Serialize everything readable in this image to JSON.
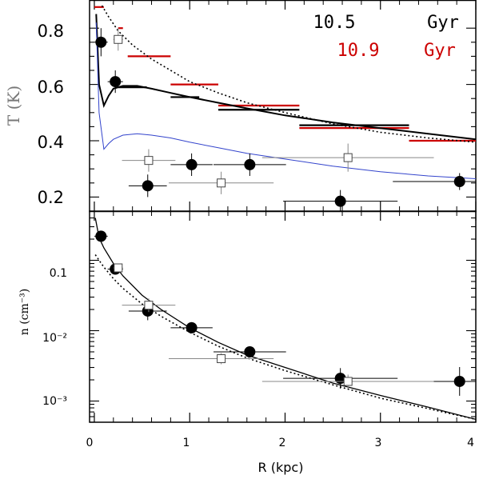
{
  "chart_data": [
    {
      "type": "scatter",
      "panel": "top",
      "title": "",
      "xlabel": "",
      "ylabel": "T (K)",
      "xlim": [
        -0.05,
        4.0
      ],
      "ylim": [
        0.15,
        0.9
      ],
      "yticks": [
        "0.2",
        "0.4",
        "0.6",
        "0.8"
      ],
      "legend": {
        "placement": "top-right",
        "entries": [
          {
            "label": "10.5",
            "unit": "Gyr",
            "color": "#000000"
          },
          {
            "label": "10.9",
            "unit": "Gyr",
            "color": "#cc0000"
          }
        ]
      },
      "series": [
        {
          "name": "10.5 Gyr",
          "kind": "steps",
          "color": "#000000",
          "points": [
            {
              "x0": 0.25,
              "x1": 0.55,
              "y": 0.59
            },
            {
              "x0": 0.8,
              "x1": 1.1,
              "y": 0.555
            },
            {
              "x0": 1.3,
              "x1": 2.15,
              "y": 0.51
            },
            {
              "x0": 2.15,
              "x1": 3.3,
              "y": 0.455
            }
          ]
        },
        {
          "name": "10.9 Gyr",
          "kind": "steps",
          "color": "#cc0000",
          "points": [
            {
              "x0": 0.0,
              "x1": 0.1,
              "y": 0.875
            },
            {
              "x0": 0.25,
              "x1": 0.3,
              "y": 0.8
            },
            {
              "x0": 0.35,
              "x1": 0.8,
              "y": 0.7
            },
            {
              "x0": 0.8,
              "x1": 1.3,
              "y": 0.6
            },
            {
              "x0": 1.3,
              "x1": 2.15,
              "y": 0.525
            },
            {
              "x0": 2.15,
              "x1": 3.3,
              "y": 0.445
            },
            {
              "x0": 3.3,
              "x1": 4.0,
              "y": 0.4
            }
          ]
        },
        {
          "kind": "points-filled",
          "color": "#000000",
          "points": [
            {
              "x": 0.07,
              "y": 0.75,
              "xerr": 0.07,
              "yerr": 0.05
            },
            {
              "x": 0.22,
              "y": 0.61,
              "xerr": 0.08,
              "yerr": 0.04
            },
            {
              "x": 0.56,
              "y": 0.24,
              "xerr": 0.2,
              "yerr": 0.04
            },
            {
              "x": 1.02,
              "y": 0.315,
              "xerr": 0.22,
              "yerr": 0.04
            },
            {
              "x": 1.63,
              "y": 0.315,
              "xerr": 0.38,
              "yerr": 0.04
            },
            {
              "x": 2.58,
              "y": 0.185,
              "xerr": 0.6,
              "yerr": 0.04
            },
            {
              "x": 3.83,
              "y": 0.255,
              "xerr": 0.7,
              "yerr": 0.03
            }
          ]
        },
        {
          "kind": "points-open",
          "color": "#000000",
          "points": [
            {
              "x": 0.25,
              "y": 0.76,
              "xerr": 0.05,
              "yerr": 0.04
            },
            {
              "x": 0.57,
              "y": 0.33,
              "xerr": 0.28,
              "yerr": 0.04
            },
            {
              "x": 1.33,
              "y": 0.25,
              "xerr": 0.55,
              "yerr": 0.04
            },
            {
              "x": 2.66,
              "y": 0.34,
              "xerr": 0.9,
              "yerr": 0.05
            }
          ]
        },
        {
          "kind": "curve-solid",
          "color": "#000000",
          "x": [
            0.02,
            0.05,
            0.1,
            0.15,
            0.2,
            0.3,
            0.45,
            0.6,
            0.8,
            1.0,
            1.3,
            1.6,
            2.0,
            2.5,
            3.0,
            3.5,
            4.0
          ],
          "y": [
            0.85,
            0.6,
            0.525,
            0.56,
            0.585,
            0.595,
            0.595,
            0.585,
            0.57,
            0.555,
            0.535,
            0.515,
            0.49,
            0.465,
            0.445,
            0.425,
            0.405
          ]
        },
        {
          "kind": "curve-dotted",
          "color": "#000000",
          "x": [
            0.08,
            0.15,
            0.25,
            0.4,
            0.6,
            0.8,
            1.0,
            1.3,
            1.6,
            2.0,
            2.5,
            3.0,
            3.5,
            4.0
          ],
          "y": [
            0.88,
            0.84,
            0.79,
            0.74,
            0.69,
            0.65,
            0.61,
            0.57,
            0.535,
            0.5,
            0.46,
            0.43,
            0.41,
            0.395
          ]
        },
        {
          "kind": "curve-blue",
          "color": "#3344cc",
          "x": [
            0.02,
            0.05,
            0.1,
            0.15,
            0.2,
            0.3,
            0.45,
            0.6,
            0.8,
            1.0,
            1.3,
            1.6,
            2.0,
            2.5,
            3.0,
            3.5,
            4.0
          ],
          "y": [
            0.82,
            0.5,
            0.37,
            0.39,
            0.405,
            0.42,
            0.425,
            0.42,
            0.41,
            0.395,
            0.375,
            0.355,
            0.335,
            0.31,
            0.29,
            0.275,
            0.265
          ]
        }
      ]
    },
    {
      "type": "scatter",
      "panel": "bottom",
      "title": "",
      "xlabel": "R (kpc)",
      "ylabel": "n (cm⁻³)",
      "xlim": [
        -0.05,
        4.0
      ],
      "ylim": [
        0.0005,
        0.5
      ],
      "yscale": "log",
      "xticks": [
        "0",
        "1",
        "2",
        "3",
        "4"
      ],
      "yticks": [
        {
          "value": 0.1,
          "label": "0.1"
        },
        {
          "value": 0.01,
          "label": "10⁻²"
        },
        {
          "value": 0.001,
          "label": "10⁻³"
        }
      ],
      "series": [
        {
          "kind": "points-filled",
          "color": "#000000",
          "points": [
            {
              "x": 0.07,
              "y": 0.22,
              "xerr": 0.07,
              "yerr_f": 1.15
            },
            {
              "x": 0.22,
              "y": 0.075,
              "xerr": 0.08,
              "yerr_f": 1.15
            },
            {
              "x": 0.56,
              "y": 0.019,
              "xerr": 0.2,
              "yerr_f": 1.35
            },
            {
              "x": 1.02,
              "y": 0.011,
              "xerr": 0.22,
              "yerr_f": 1.2
            },
            {
              "x": 1.63,
              "y": 0.005,
              "xerr": 0.38,
              "yerr_f": 1.2
            },
            {
              "x": 2.58,
              "y": 0.0021,
              "xerr": 0.6,
              "yerr_f": 1.4
            },
            {
              "x": 3.83,
              "y": 0.0019,
              "xerr": 0.7,
              "yerr_f": 1.6
            }
          ]
        },
        {
          "kind": "points-open",
          "color": "#000000",
          "points": [
            {
              "x": 0.25,
              "y": 0.078,
              "xerr": 0.05,
              "yerr_f": 1.15
            },
            {
              "x": 0.57,
              "y": 0.023,
              "xerr": 0.28,
              "yerr_f": 1.25
            },
            {
              "x": 1.33,
              "y": 0.004,
              "xerr": 0.55,
              "yerr_f": 1.2
            },
            {
              "x": 2.66,
              "y": 0.0019,
              "xerr": 0.9,
              "yerr_f": 1.25
            }
          ]
        },
        {
          "kind": "curve-solid",
          "color": "#000000",
          "x": [
            0.01,
            0.05,
            0.1,
            0.2,
            0.3,
            0.5,
            0.7,
            1.0,
            1.3,
            1.6,
            2.0,
            2.5,
            3.0,
            3.5,
            4.0
          ],
          "y": [
            0.4,
            0.21,
            0.15,
            0.09,
            0.06,
            0.032,
            0.02,
            0.011,
            0.0068,
            0.0045,
            0.003,
            0.0018,
            0.0012,
            0.00082,
            0.00055
          ]
        },
        {
          "kind": "curve-dotted",
          "color": "#000000",
          "x": [
            0.01,
            0.05,
            0.1,
            0.2,
            0.3,
            0.5,
            0.7,
            1.0,
            1.3,
            1.6,
            2.0,
            2.5,
            3.0,
            3.5,
            4.0
          ],
          "y": [
            0.12,
            0.1,
            0.08,
            0.055,
            0.04,
            0.024,
            0.016,
            0.0095,
            0.006,
            0.0041,
            0.0027,
            0.0017,
            0.0011,
            0.00078,
            0.00055
          ]
        }
      ]
    }
  ]
}
